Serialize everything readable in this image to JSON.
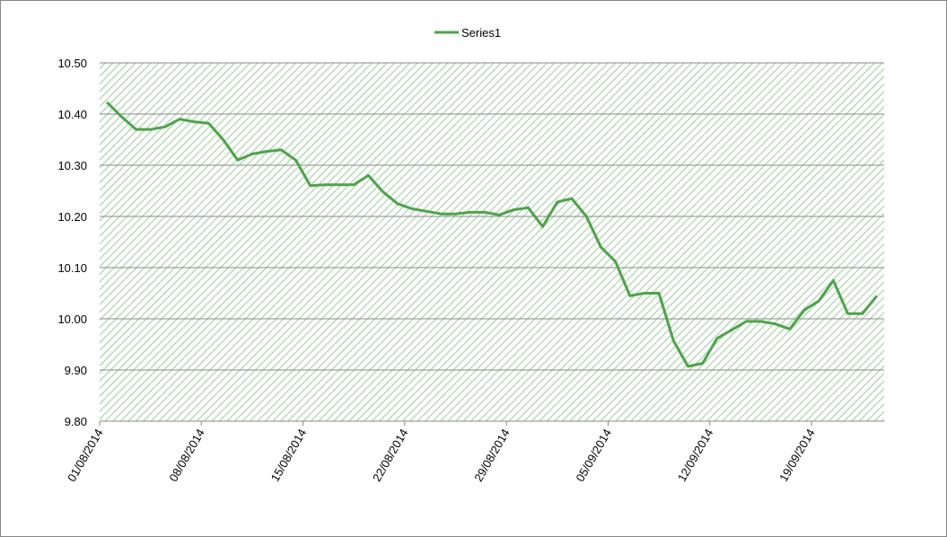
{
  "chart_data": {
    "type": "line",
    "x": [
      "01/08/2014",
      "02/08/2014",
      "03/08/2014",
      "04/08/2014",
      "05/08/2014",
      "06/08/2014",
      "07/08/2014",
      "08/08/2014",
      "09/08/2014",
      "10/08/2014",
      "11/08/2014",
      "12/08/2014",
      "13/08/2014",
      "14/08/2014",
      "15/08/2014",
      "16/08/2014",
      "17/08/2014",
      "18/08/2014",
      "19/08/2014",
      "20/08/2014",
      "21/08/2014",
      "22/08/2014",
      "23/08/2014",
      "24/08/2014",
      "25/08/2014",
      "26/08/2014",
      "27/08/2014",
      "28/08/2014",
      "29/08/2014",
      "30/08/2014",
      "31/08/2014",
      "01/09/2014",
      "02/09/2014",
      "03/09/2014",
      "04/09/2014",
      "05/09/2014",
      "06/09/2014",
      "07/09/2014",
      "08/09/2014",
      "09/09/2014",
      "10/09/2014",
      "11/09/2014",
      "12/09/2014",
      "13/09/2014",
      "14/09/2014",
      "15/09/2014",
      "16/09/2014",
      "17/09/2014",
      "18/09/2014",
      "19/09/2014",
      "20/09/2014",
      "21/09/2014",
      "22/09/2014",
      "23/09/2014"
    ],
    "series": [
      {
        "name": "Series1",
        "color": "#4ea34a",
        "values": [
          10.423,
          10.395,
          10.37,
          10.37,
          10.375,
          10.39,
          10.385,
          10.382,
          10.35,
          10.31,
          10.322,
          10.327,
          10.33,
          10.31,
          10.26,
          10.262,
          10.262,
          10.262,
          10.28,
          10.248,
          10.225,
          10.215,
          10.21,
          10.205,
          10.205,
          10.208,
          10.208,
          10.203,
          10.213,
          10.217,
          10.18,
          10.228,
          10.235,
          10.2,
          10.14,
          10.112,
          10.045,
          10.05,
          10.05,
          9.957,
          9.907,
          9.913,
          9.962,
          9.978,
          9.995,
          9.995,
          9.99,
          9.98,
          10.017,
          10.035,
          10.075,
          10.01,
          10.01,
          10.045
        ]
      }
    ],
    "xlim": [
      "01/08/2014",
      "24/09/2014"
    ],
    "xticks": [
      "01/08/2014",
      "08/08/2014",
      "15/08/2014",
      "22/08/2014",
      "29/08/2014",
      "05/09/2014",
      "12/09/2014",
      "19/09/2014"
    ],
    "ylim": [
      9.8,
      10.5
    ],
    "yticks": [
      {
        "value": 9.8,
        "label": "9.80"
      },
      {
        "value": 9.9,
        "label": "9.90"
      },
      {
        "value": 10,
        "label": "10.00"
      },
      {
        "value": 10.1,
        "label": "10.10"
      },
      {
        "value": 10.2,
        "label": "10.20"
      },
      {
        "value": 10.3,
        "label": "10.30"
      },
      {
        "value": 10.4,
        "label": "10.40"
      },
      {
        "value": 10.5,
        "label": "10.50"
      }
    ],
    "grid": true,
    "legend": "top"
  }
}
